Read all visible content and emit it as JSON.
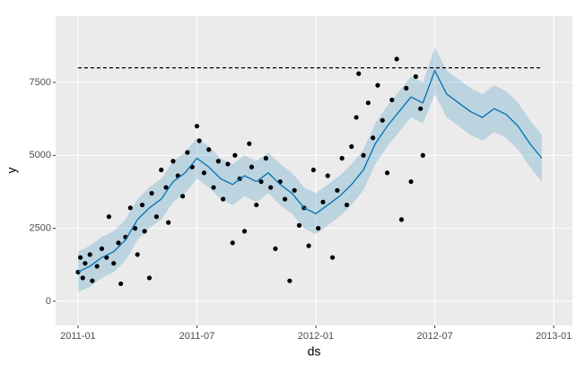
{
  "chart_data": {
    "type": "forecast",
    "x_label": "ds",
    "y_label": "y",
    "xlim": [
      2010.906,
      2013.079
    ],
    "ylim": [
      -830,
      9770
    ],
    "xticks": [
      {
        "value": 2011.0,
        "label": "2011-01"
      },
      {
        "value": 2011.5,
        "label": "2011-07"
      },
      {
        "value": 2012.0,
        "label": "2012-01"
      },
      {
        "value": 2012.5,
        "label": "2012-07"
      },
      {
        "value": 2013.0,
        "label": "2013-01"
      }
    ],
    "yticks": [
      0,
      2500,
      5000,
      7500
    ],
    "grid": true,
    "cap": 8000,
    "series": [
      {
        "color": "#000000",
        "x": [
          2011.0,
          2011.01,
          2011.02,
          2011.03,
          2011.05,
          2011.06,
          2011.08,
          2011.1,
          2011.12,
          2011.13,
          2011.15,
          2011.17,
          2011.18,
          2011.2,
          2011.22,
          2011.24,
          2011.25,
          2011.27,
          2011.28,
          2011.3,
          2011.31,
          2011.33,
          2011.35,
          2011.37,
          2011.38,
          2011.4,
          2011.42,
          2011.44,
          2011.46,
          2011.48,
          2011.5,
          2011.51,
          2011.53,
          2011.55,
          2011.57,
          2011.59,
          2011.61,
          2011.63,
          2011.65,
          2011.66,
          2011.68,
          2011.7,
          2011.72,
          2011.73,
          2011.75,
          2011.77,
          2011.79,
          2011.81,
          2011.83,
          2011.85,
          2011.87,
          2011.89,
          2011.91,
          2011.93,
          2011.95,
          2011.97,
          2011.99,
          2012.01,
          2012.03,
          2012.05,
          2012.07,
          2012.09,
          2012.11,
          2012.13,
          2012.15,
          2012.17,
          2012.18,
          2012.2,
          2012.22,
          2012.24,
          2012.26,
          2012.28,
          2012.3,
          2012.32,
          2012.34,
          2012.36,
          2012.38,
          2012.4,
          2012.42,
          2012.44,
          2012.45
        ],
        "values": [
          1000,
          1500,
          800,
          1300,
          1600,
          700,
          1200,
          1800,
          1500,
          2900,
          1300,
          2000,
          600,
          2200,
          3200,
          2500,
          1600,
          3300,
          2400,
          800,
          3700,
          2900,
          4500,
          3900,
          2700,
          4800,
          4300,
          3600,
          5100,
          4600,
          6000,
          5500,
          4400,
          5200,
          3900,
          4800,
          3500,
          4700,
          2000,
          5000,
          4200,
          2400,
          5400,
          4600,
          3300,
          4100,
          4900,
          3900,
          1800,
          4100,
          3500,
          700,
          3800,
          2600,
          3200,
          1900,
          4500,
          2500,
          3400,
          4300,
          1500,
          3800,
          4900,
          3300,
          5300,
          6300,
          7800,
          5000,
          6800,
          5600,
          7400,
          6200,
          4400,
          6900,
          8300,
          2800,
          7300,
          4100,
          7700,
          6600,
          5000
        ]
      },
      {
        "color": "#0072B2",
        "x": [
          2011.0,
          2011.05,
          2011.1,
          2011.15,
          2011.2,
          2011.25,
          2011.3,
          2011.35,
          2011.4,
          2011.45,
          2011.5,
          2011.55,
          2011.6,
          2011.65,
          2011.7,
          2011.75,
          2011.8,
          2011.85,
          2011.9,
          2011.95,
          2012.0,
          2012.05,
          2012.1,
          2012.15,
          2012.2,
          2012.25,
          2012.3,
          2012.35,
          2012.4,
          2012.45,
          2012.5,
          2012.55,
          2012.6,
          2012.65,
          2012.7,
          2012.75,
          2012.8,
          2012.85,
          2012.9,
          2012.95
        ],
        "values": [
          1000,
          1200,
          1500,
          1700,
          2100,
          2800,
          3200,
          3500,
          4100,
          4400,
          4900,
          4600,
          4200,
          4000,
          4300,
          4100,
          4400,
          4000,
          3700,
          3200,
          3000,
          3300,
          3600,
          4000,
          4500,
          5400,
          6000,
          6500,
          7000,
          6800,
          7900,
          7100,
          6800,
          6500,
          6300,
          6600,
          6400,
          6000,
          5400,
          4900
        ]
      }
    ],
    "band": {
      "color": "#0072B2",
      "lower": [
        300,
        500,
        800,
        1000,
        1400,
        2100,
        2500,
        2800,
        3400,
        3700,
        4200,
        3900,
        3500,
        3300,
        3600,
        3400,
        3700,
        3300,
        3000,
        2500,
        2300,
        2600,
        2900,
        3300,
        3800,
        4700,
        5300,
        5800,
        6300,
        6100,
        7100,
        6300,
        6000,
        5700,
        5500,
        5800,
        5600,
        5200,
        4600,
        4100
      ],
      "upper": [
        1700,
        1900,
        2200,
        2400,
        2800,
        3500,
        3900,
        4200,
        4800,
        5100,
        5600,
        5300,
        4900,
        4700,
        5000,
        4800,
        5100,
        4700,
        4400,
        3900,
        3700,
        4000,
        4300,
        4700,
        5200,
        6100,
        6700,
        7200,
        7700,
        7500,
        8700,
        7900,
        7600,
        7300,
        7100,
        7400,
        7200,
        6800,
        6200,
        5700
      ]
    }
  }
}
